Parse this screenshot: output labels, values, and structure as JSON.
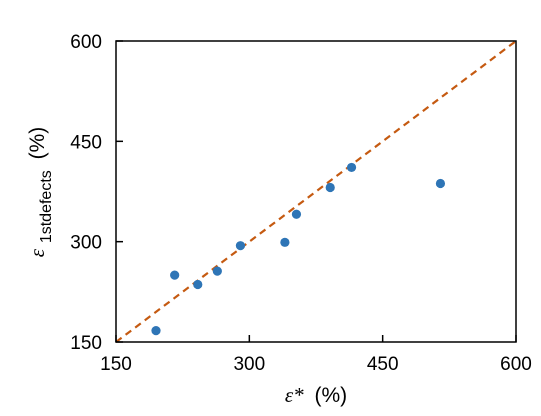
{
  "chart_data": {
    "type": "scatter",
    "xlabel": {
      "symbol": "ε*",
      "unit": "(%)"
    },
    "ylabel": {
      "symbol": "ε",
      "subscript": "1stdefects",
      "unit": "(%)"
    },
    "xlim": [
      150,
      600
    ],
    "ylim": [
      150,
      600
    ],
    "x_ticks": [
      150,
      300,
      450,
      600
    ],
    "y_ticks": [
      150,
      300,
      450,
      600
    ],
    "grid": false,
    "points": [
      {
        "x": 195,
        "y": 167
      },
      {
        "x": 216,
        "y": 250
      },
      {
        "x": 242,
        "y": 236
      },
      {
        "x": 264,
        "y": 256
      },
      {
        "x": 290,
        "y": 294
      },
      {
        "x": 340,
        "y": 299
      },
      {
        "x": 353,
        "y": 341
      },
      {
        "x": 391,
        "y": 381
      },
      {
        "x": 415,
        "y": 411
      },
      {
        "x": 515,
        "y": 387
      }
    ],
    "reference_line": {
      "style": "dashed",
      "from": [
        150,
        150
      ],
      "to": [
        600,
        600
      ]
    },
    "colors": {
      "points": "#2e75b6",
      "reference_line": "#c55a11",
      "axes": "#000000"
    }
  }
}
